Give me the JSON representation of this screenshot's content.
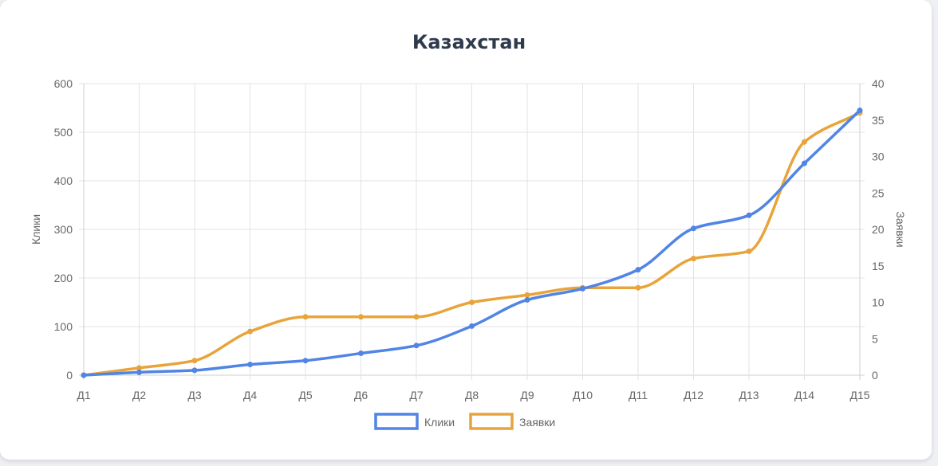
{
  "chart_data": {
    "type": "line",
    "title": "Казахстан",
    "categories": [
      "Д1",
      "Д2",
      "Д3",
      "Д4",
      "Д5",
      "Д6",
      "Д7",
      "Д8",
      "Д9",
      "Д10",
      "Д11",
      "Д12",
      "Д13",
      "Д14",
      "Д15"
    ],
    "series": [
      {
        "name": "Клики",
        "axis": "left",
        "color": "#5084e5",
        "values": [
          0,
          6,
          10,
          22,
          30,
          45,
          61,
          101,
          155,
          178,
          217,
          302,
          329,
          436,
          545
        ]
      },
      {
        "name": "Заявки",
        "axis": "right",
        "color": "#e8a43b",
        "values": [
          0,
          1,
          2,
          6,
          8,
          8,
          8,
          10,
          11,
          12,
          12,
          16,
          17,
          32,
          36
        ]
      }
    ],
    "y_left": {
      "label": "Клики",
      "min": 0,
      "max": 600,
      "ticks": [
        0,
        100,
        200,
        300,
        400,
        500,
        600
      ]
    },
    "y_right": {
      "label": "Заявки",
      "min": 0,
      "max": 40,
      "ticks": [
        0,
        5,
        10,
        15,
        20,
        25,
        30,
        35,
        40
      ]
    },
    "grid": true,
    "legend": "bottom",
    "colors": {
      "grid": "#e3e3e3",
      "axis": "#cfcfcf",
      "text": "#666666",
      "title": "#2f3a4d"
    }
  }
}
